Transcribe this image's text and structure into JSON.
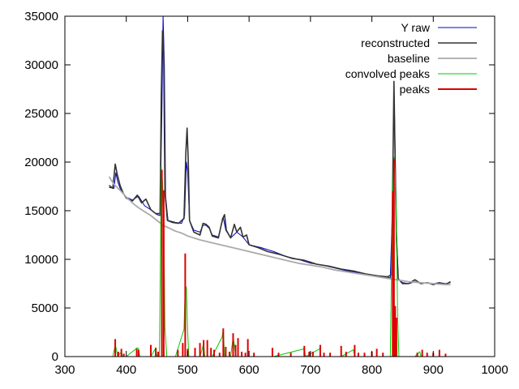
{
  "chart_data": {
    "type": "line",
    "title": "",
    "xlabel": "",
    "ylabel": "",
    "xlim": [
      300,
      1000
    ],
    "ylim": [
      0,
      35000
    ],
    "x_ticks": [
      "300",
      "400",
      "500",
      "600",
      "700",
      "800",
      "900",
      "1000"
    ],
    "y_ticks": [
      "0",
      "5000",
      "10000",
      "15000",
      "20000",
      "25000",
      "30000",
      "35000"
    ],
    "grid": false,
    "legend_position": "top-right",
    "series": [
      {
        "name": "Y raw",
        "color": "#0000cc",
        "points": [
          [
            372,
            17400
          ],
          [
            380,
            17300
          ],
          [
            383,
            18900
          ],
          [
            386,
            18000
          ],
          [
            390,
            17300
          ],
          [
            395,
            16800
          ],
          [
            400,
            16400
          ],
          [
            410,
            16100
          ],
          [
            420,
            16500
          ],
          [
            430,
            15500
          ],
          [
            440,
            15100
          ],
          [
            450,
            14600
          ],
          [
            455,
            14500
          ],
          [
            458,
            25000
          ],
          [
            460,
            35000
          ],
          [
            462,
            30000
          ],
          [
            464,
            16500
          ],
          [
            468,
            14000
          ],
          [
            480,
            13800
          ],
          [
            490,
            13700
          ],
          [
            495,
            14500
          ],
          [
            498,
            20000
          ],
          [
            500,
            19000
          ],
          [
            503,
            14000
          ],
          [
            510,
            13000
          ],
          [
            520,
            12800
          ],
          [
            525,
            13500
          ],
          [
            530,
            13500
          ],
          [
            535,
            13200
          ],
          [
            540,
            12500
          ],
          [
            550,
            12300
          ],
          [
            558,
            14300
          ],
          [
            562,
            13000
          ],
          [
            570,
            12200
          ],
          [
            575,
            12500
          ],
          [
            580,
            12800
          ],
          [
            590,
            12300
          ],
          [
            600,
            11500
          ],
          [
            620,
            11200
          ],
          [
            640,
            10800
          ],
          [
            660,
            10300
          ],
          [
            680,
            10000
          ],
          [
            700,
            9600
          ],
          [
            720,
            9400
          ],
          [
            740,
            9100
          ],
          [
            760,
            8800
          ],
          [
            780,
            8600
          ],
          [
            800,
            8400
          ],
          [
            820,
            8200
          ],
          [
            830,
            8100
          ],
          [
            834,
            16000
          ],
          [
            836,
            28000
          ],
          [
            838,
            21000
          ],
          [
            840,
            13000
          ],
          [
            843,
            8000
          ],
          [
            850,
            7600
          ],
          [
            860,
            7500
          ],
          [
            870,
            7700
          ],
          [
            880,
            7500
          ],
          [
            890,
            7600
          ],
          [
            900,
            7500
          ],
          [
            910,
            7600
          ],
          [
            920,
            7500
          ],
          [
            928,
            7600
          ]
        ]
      },
      {
        "name": "reconstructed",
        "color": "#333333",
        "points": [
          [
            372,
            17600
          ],
          [
            378,
            17300
          ],
          [
            382,
            19800
          ],
          [
            385,
            18800
          ],
          [
            390,
            17600
          ],
          [
            395,
            16800
          ],
          [
            400,
            16300
          ],
          [
            410,
            16000
          ],
          [
            418,
            16600
          ],
          [
            425,
            15800
          ],
          [
            432,
            16200
          ],
          [
            440,
            15100
          ],
          [
            448,
            14700
          ],
          [
            455,
            14700
          ],
          [
            457,
            27000
          ],
          [
            459,
            33500
          ],
          [
            461,
            31000
          ],
          [
            463,
            17000
          ],
          [
            467,
            14000
          ],
          [
            475,
            13800
          ],
          [
            485,
            13700
          ],
          [
            494,
            14200
          ],
          [
            497,
            21000
          ],
          [
            499,
            23500
          ],
          [
            501,
            20000
          ],
          [
            503,
            14000
          ],
          [
            510,
            12800
          ],
          [
            520,
            12500
          ],
          [
            525,
            13700
          ],
          [
            530,
            13600
          ],
          [
            535,
            13300
          ],
          [
            540,
            12400
          ],
          [
            550,
            12200
          ],
          [
            557,
            14200
          ],
          [
            560,
            14600
          ],
          [
            563,
            13000
          ],
          [
            570,
            12200
          ],
          [
            576,
            13600
          ],
          [
            580,
            12800
          ],
          [
            586,
            13300
          ],
          [
            590,
            12300
          ],
          [
            596,
            12500
          ],
          [
            600,
            11500
          ],
          [
            615,
            11200
          ],
          [
            630,
            10800
          ],
          [
            650,
            10500
          ],
          [
            670,
            10100
          ],
          [
            690,
            9900
          ],
          [
            710,
            9500
          ],
          [
            730,
            9300
          ],
          [
            750,
            9000
          ],
          [
            770,
            8800
          ],
          [
            790,
            8500
          ],
          [
            810,
            8300
          ],
          [
            825,
            8200
          ],
          [
            832,
            8400
          ],
          [
            834,
            18000
          ],
          [
            836,
            28300
          ],
          [
            838,
            20000
          ],
          [
            840,
            12000
          ],
          [
            843,
            8000
          ],
          [
            850,
            7500
          ],
          [
            860,
            7500
          ],
          [
            870,
            7900
          ],
          [
            880,
            7500
          ],
          [
            890,
            7600
          ],
          [
            900,
            7400
          ],
          [
            910,
            7600
          ],
          [
            920,
            7400
          ],
          [
            928,
            7700
          ]
        ]
      },
      {
        "name": "baseline",
        "color": "#aaaaaa",
        "points": [
          [
            372,
            18500
          ],
          [
            380,
            17700
          ],
          [
            390,
            17100
          ],
          [
            400,
            16400
          ],
          [
            410,
            15800
          ],
          [
            420,
            15300
          ],
          [
            430,
            14900
          ],
          [
            440,
            14500
          ],
          [
            450,
            14000
          ],
          [
            460,
            13500
          ],
          [
            470,
            13200
          ],
          [
            480,
            12900
          ],
          [
            490,
            12700
          ],
          [
            500,
            12400
          ],
          [
            520,
            12000
          ],
          [
            540,
            11700
          ],
          [
            560,
            11400
          ],
          [
            580,
            11100
          ],
          [
            600,
            10800
          ],
          [
            620,
            10500
          ],
          [
            640,
            10200
          ],
          [
            660,
            9900
          ],
          [
            680,
            9600
          ],
          [
            700,
            9400
          ],
          [
            720,
            9200
          ],
          [
            740,
            8900
          ],
          [
            760,
            8700
          ],
          [
            780,
            8500
          ],
          [
            800,
            8300
          ],
          [
            820,
            8100
          ],
          [
            840,
            7900
          ],
          [
            860,
            7700
          ],
          [
            880,
            7600
          ],
          [
            900,
            7500
          ],
          [
            920,
            7400
          ],
          [
            928,
            7400
          ]
        ]
      },
      {
        "name": "convolved peaks",
        "color": "#00cc00",
        "points": [
          [
            372,
            0
          ],
          [
            378,
            0
          ],
          [
            382,
            1200
          ],
          [
            384,
            700
          ],
          [
            386,
            0
          ],
          [
            392,
            500
          ],
          [
            394,
            0
          ],
          [
            400,
            0
          ],
          [
            418,
            900
          ],
          [
            420,
            800
          ],
          [
            422,
            0
          ],
          [
            440,
            0
          ],
          [
            448,
            900
          ],
          [
            450,
            0
          ],
          [
            454,
            0
          ],
          [
            457,
            19500
          ],
          [
            459,
            18000
          ],
          [
            461,
            14000
          ],
          [
            463,
            3000
          ],
          [
            466,
            0
          ],
          [
            480,
            0
          ],
          [
            494,
            2800
          ],
          [
            496,
            7300
          ],
          [
            498,
            7100
          ],
          [
            500,
            2500
          ],
          [
            502,
            0
          ],
          [
            520,
            0
          ],
          [
            526,
            1300
          ],
          [
            528,
            0
          ],
          [
            540,
            0
          ],
          [
            556,
            2000
          ],
          [
            558,
            2800
          ],
          [
            560,
            0
          ],
          [
            570,
            0
          ],
          [
            574,
            2000
          ],
          [
            576,
            1200
          ],
          [
            578,
            0
          ],
          [
            600,
            0
          ],
          [
            640,
            0
          ],
          [
            690,
            800
          ],
          [
            692,
            0
          ],
          [
            715,
            800
          ],
          [
            717,
            0
          ],
          [
            750,
            0
          ],
          [
            770,
            700
          ],
          [
            772,
            0
          ],
          [
            800,
            0
          ],
          [
            830,
            0
          ],
          [
            834,
            17000
          ],
          [
            836,
            20500
          ],
          [
            838,
            19000
          ],
          [
            840,
            13000
          ],
          [
            842,
            4000
          ],
          [
            844,
            0
          ],
          [
            870,
            0
          ],
          [
            878,
            500
          ],
          [
            880,
            0
          ],
          [
            928,
            0
          ]
        ]
      },
      {
        "name": "peaks",
        "color": "#dd0000",
        "type": "stick",
        "points": [
          [
            382,
            1800
          ],
          [
            387,
            500
          ],
          [
            392,
            800
          ],
          [
            396,
            300
          ],
          [
            417,
            800
          ],
          [
            420,
            700
          ],
          [
            440,
            1200
          ],
          [
            448,
            900
          ],
          [
            452,
            500
          ],
          [
            458,
            19200
          ],
          [
            461,
            17100
          ],
          [
            484,
            700
          ],
          [
            492,
            1400
          ],
          [
            496,
            10600
          ],
          [
            500,
            800
          ],
          [
            512,
            900
          ],
          [
            520,
            1400
          ],
          [
            526,
            1700
          ],
          [
            532,
            1700
          ],
          [
            538,
            900
          ],
          [
            543,
            700
          ],
          [
            552,
            400
          ],
          [
            558,
            2900
          ],
          [
            562,
            1000
          ],
          [
            568,
            500
          ],
          [
            574,
            2400
          ],
          [
            578,
            1200
          ],
          [
            582,
            1900
          ],
          [
            588,
            500
          ],
          [
            594,
            400
          ],
          [
            598,
            1800
          ],
          [
            608,
            400
          ],
          [
            638,
            900
          ],
          [
            648,
            400
          ],
          [
            668,
            400
          ],
          [
            690,
            1100
          ],
          [
            698,
            500
          ],
          [
            704,
            500
          ],
          [
            716,
            1200
          ],
          [
            722,
            400
          ],
          [
            732,
            400
          ],
          [
            750,
            1100
          ],
          [
            758,
            500
          ],
          [
            772,
            1200
          ],
          [
            778,
            400
          ],
          [
            788,
            400
          ],
          [
            800,
            500
          ],
          [
            808,
            800
          ],
          [
            818,
            400
          ],
          [
            834,
            17000
          ],
          [
            836,
            20300
          ],
          [
            838,
            5200
          ],
          [
            840,
            4000
          ],
          [
            874,
            400
          ],
          [
            882,
            700
          ],
          [
            890,
            400
          ],
          [
            900,
            400
          ],
          [
            910,
            700
          ],
          [
            920,
            300
          ]
        ]
      }
    ]
  }
}
